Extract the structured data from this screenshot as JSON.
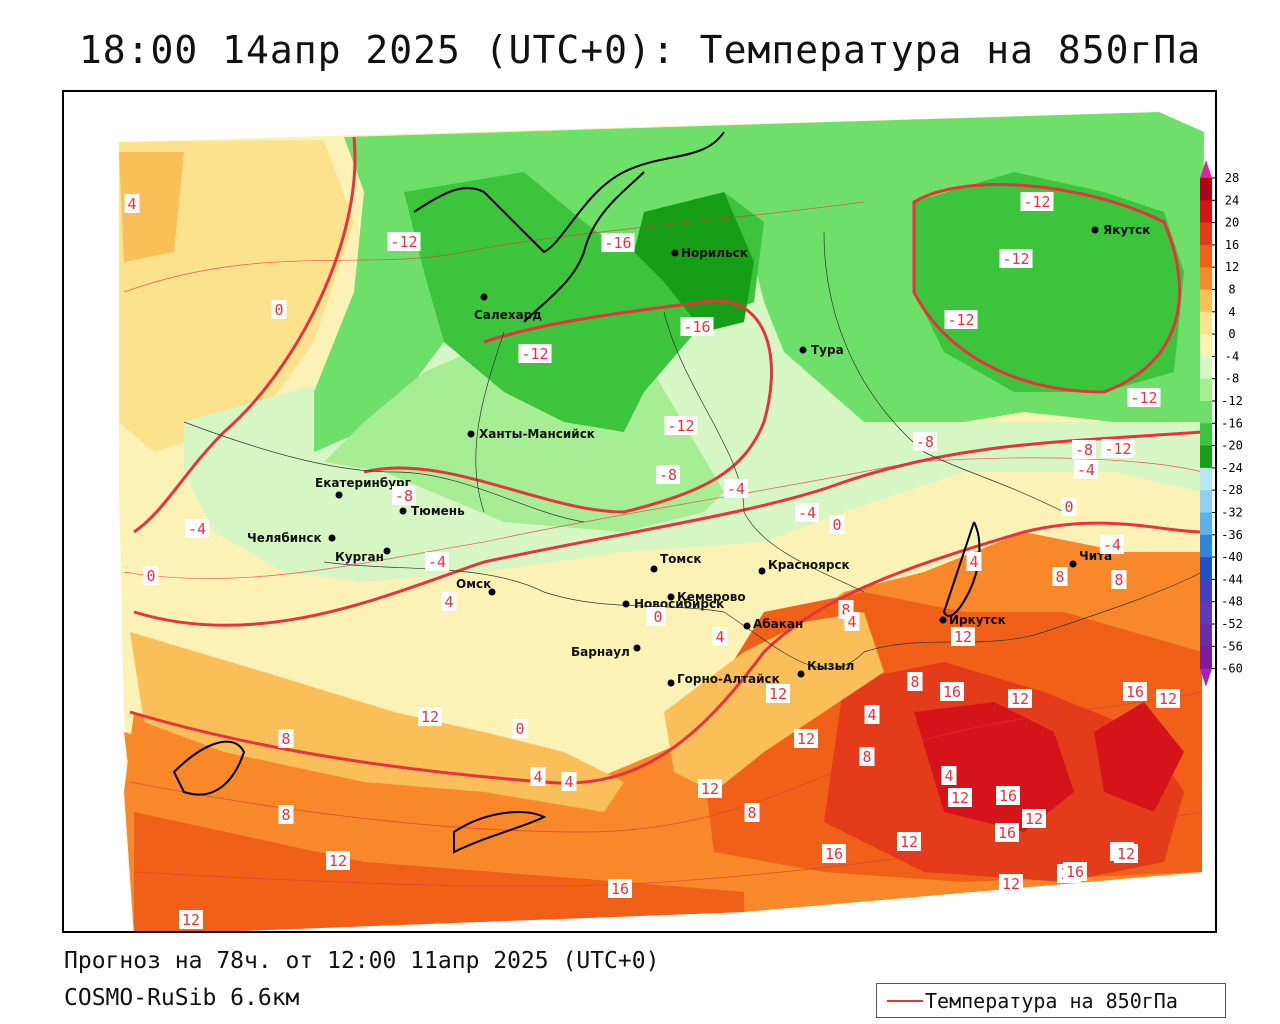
{
  "title": "18:00 14апр 2025 (UTC+0): Температура на 850гПа",
  "footer": {
    "forecast": "Прогноз на 78ч. от 12:00 11апр 2025 (UTC+0)",
    "model": "COSMO-RuSib 6.6км"
  },
  "legend": {
    "label": "Температура на 850гПа",
    "line_color": "#e8323c"
  },
  "colorbar": {
    "ticks": [
      "28",
      "24",
      "20",
      "16",
      "12",
      "8",
      "4",
      "0",
      "-4",
      "-8",
      "-12",
      "-16",
      "-20",
      "-24",
      "-28",
      "-32",
      "-36",
      "-40",
      "-44",
      "-48",
      "-52",
      "-56",
      "-60"
    ],
    "colors": [
      "#b0001a",
      "#d4141a",
      "#e43c1a",
      "#f06018",
      "#f8882a",
      "#fbbf5a",
      "#fde28e",
      "#fdf2b6",
      "#d6f7c4",
      "#a6ed94",
      "#6ee06a",
      "#3cc43c",
      "#179e17",
      "#b7e6f4",
      "#8fd0f2",
      "#5cb0ec",
      "#2e86dc",
      "#2050c8",
      "#4040c0",
      "#5a3cb8",
      "#6a2ca8",
      "#7a1c9c"
    ]
  },
  "cities": [
    {
      "name": "Якутск"
    },
    {
      "name": "Норильск"
    },
    {
      "name": "Салехард"
    },
    {
      "name": "Тура"
    },
    {
      "name": "Ханты-Мансийск"
    },
    {
      "name": "Екатеринбург"
    },
    {
      "name": "Тюмень"
    },
    {
      "name": "Челябинск"
    },
    {
      "name": "Курган"
    },
    {
      "name": "Омск"
    },
    {
      "name": "Новосибирск"
    },
    {
      "name": "Томск"
    },
    {
      "name": "Кемерово"
    },
    {
      "name": "Красноярск"
    },
    {
      "name": "Барнаул"
    },
    {
      "name": "Абакан"
    },
    {
      "name": "Горно-Алтайск"
    },
    {
      "name": "Кызыл"
    },
    {
      "name": "Иркутск"
    },
    {
      "name": "Чита"
    }
  ],
  "isotherm_labels": [
    "4",
    "-12",
    "-16",
    "-12",
    "-12",
    "-12",
    "0",
    "-12",
    "-16",
    "-12",
    "-12",
    "-12",
    "-8",
    "-8",
    "-4",
    "-8",
    "-4",
    "-4",
    "0",
    "-4",
    "0",
    "-8",
    "-4",
    "0",
    "-4",
    "4",
    "4",
    "0",
    "8",
    "8",
    "4",
    "0",
    "12",
    "8",
    "4",
    "12",
    "16",
    "12",
    "16",
    "12",
    "8",
    "4",
    "12",
    "8",
    "16",
    "4",
    "8",
    "12",
    "0",
    "4",
    "4",
    "8",
    "12",
    "12",
    "12",
    "16",
    "12",
    "8",
    "16",
    "12",
    "16",
    "12",
    "16",
    "12",
    "16",
    "12",
    "16",
    "12",
    "16"
  ]
}
